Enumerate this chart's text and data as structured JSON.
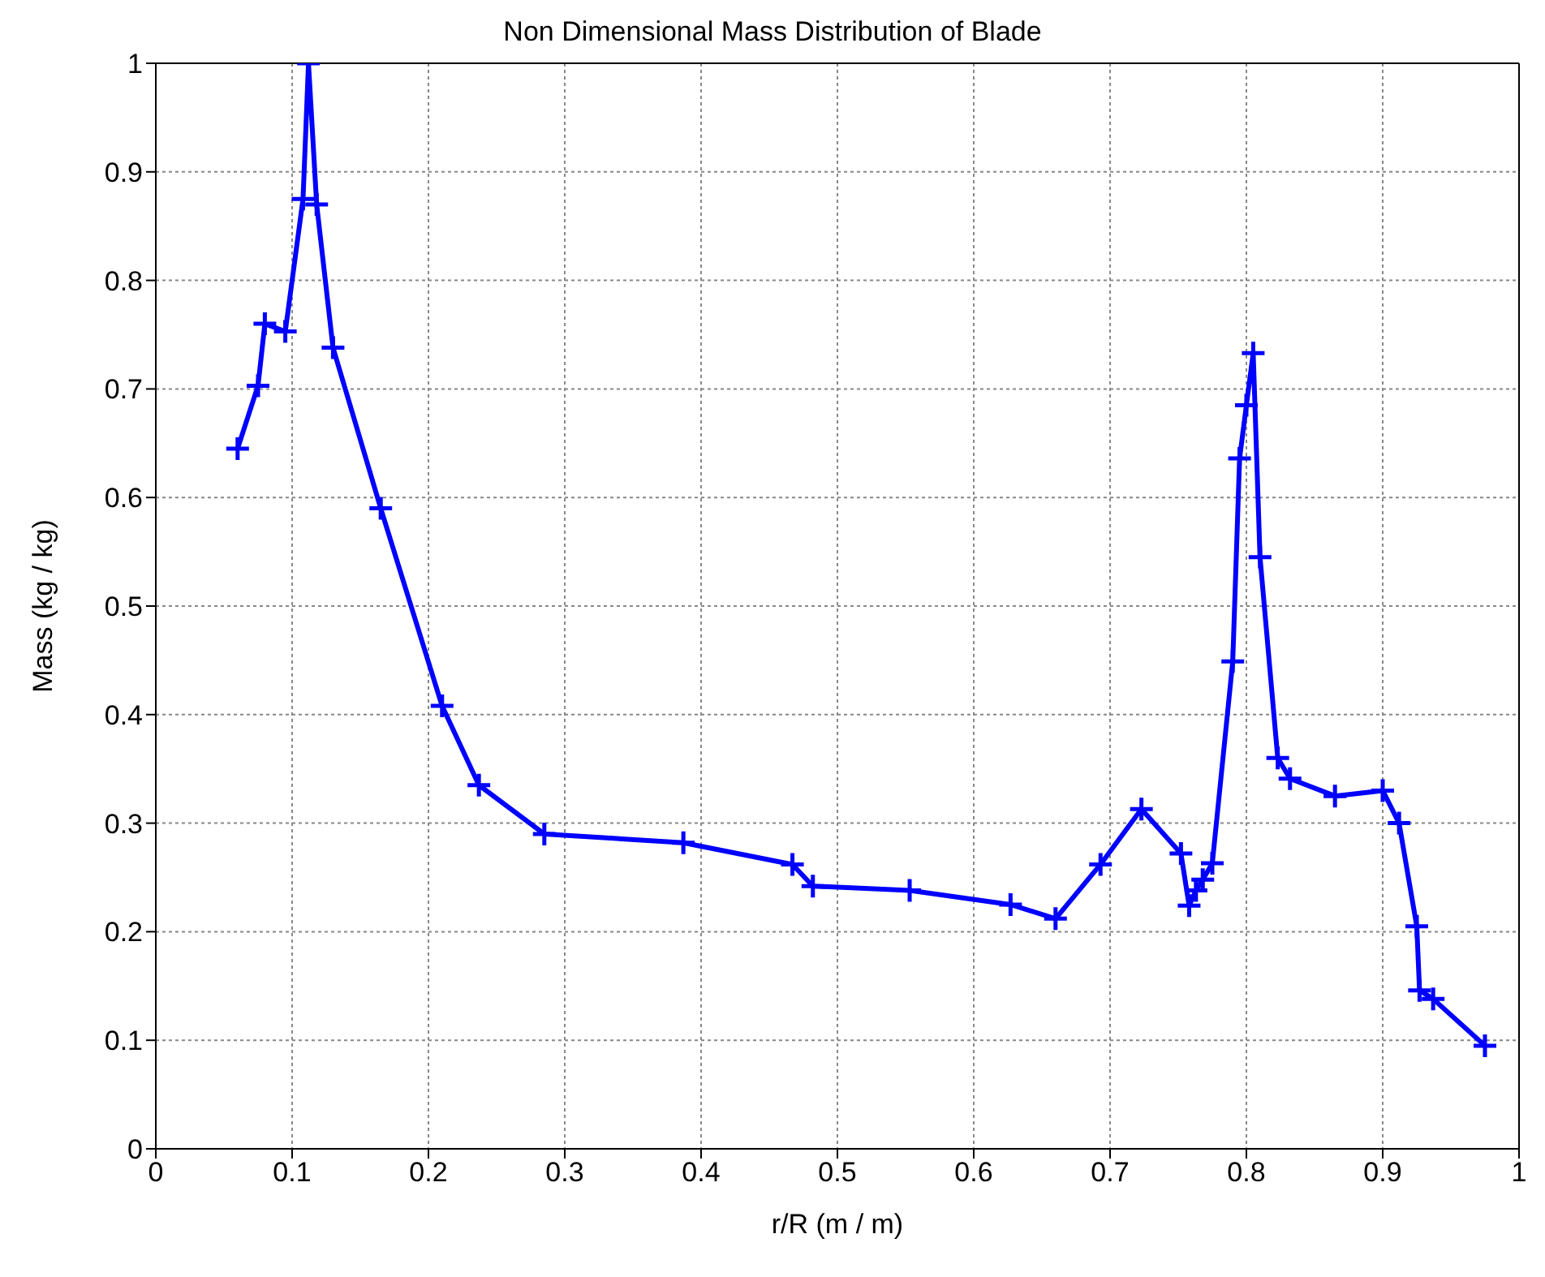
{
  "chart_data": {
    "type": "line",
    "title": "Non Dimensional Mass Distribution of Blade",
    "xlabel": "r/R (m / m)",
    "ylabel": "Mass (kg / kg)",
    "x": [
      0.06,
      0.075,
      0.08,
      0.095,
      0.108,
      0.112,
      0.118,
      0.13,
      0.165,
      0.21,
      0.237,
      0.285,
      0.387,
      0.467,
      0.482,
      0.553,
      0.627,
      0.66,
      0.693,
      0.723,
      0.752,
      0.758,
      0.763,
      0.768,
      0.775,
      0.79,
      0.795,
      0.8,
      0.805,
      0.81,
      0.823,
      0.832,
      0.865,
      0.9,
      0.912,
      0.925,
      0.927,
      0.937,
      0.975
    ],
    "series": [
      {
        "color": "#0000ff",
        "values": [
          0.645,
          0.703,
          0.76,
          0.753,
          0.875,
          1.0,
          0.87,
          0.738,
          0.59,
          0.408,
          0.335,
          0.29,
          0.282,
          0.262,
          0.242,
          0.238,
          0.225,
          0.212,
          0.262,
          0.313,
          0.272,
          0.224,
          0.238,
          0.248,
          0.263,
          0.449,
          0.636,
          0.685,
          0.733,
          0.545,
          0.36,
          0.341,
          0.325,
          0.33,
          0.3,
          0.205,
          0.146,
          0.138,
          0.095
        ]
      }
    ],
    "xlim": [
      0,
      1
    ],
    "xticks": [
      0,
      0.1,
      0.2,
      0.3,
      0.4,
      0.5,
      0.6,
      0.7,
      0.8,
      0.9,
      1
    ],
    "ylim": [
      0,
      1
    ],
    "yticks": [
      0,
      0.1,
      0.2,
      0.3,
      0.4,
      0.5,
      0.6,
      0.7,
      0.8,
      0.9,
      1
    ],
    "grid": true,
    "marker": "cross",
    "line_style": "solid",
    "legend": false
  }
}
